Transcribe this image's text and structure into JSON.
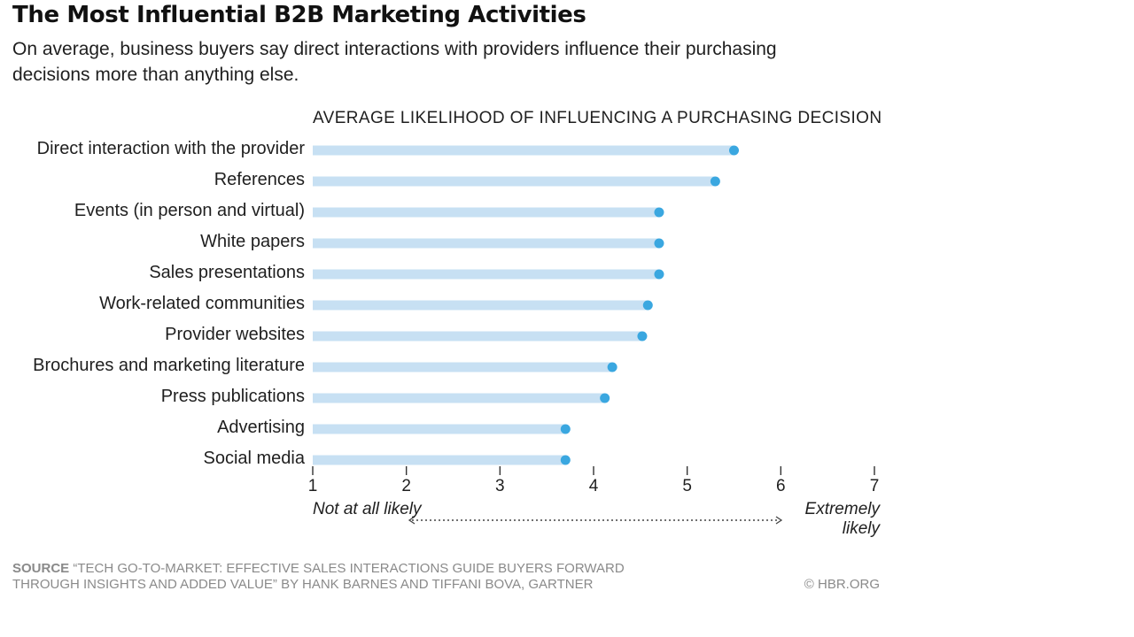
{
  "header": {
    "title": "The Most Influential B2B Marketing Activities",
    "subtitle": "On average, business buyers say direct interactions with providers influence their purchasing decisions more than anything else."
  },
  "chart_data": {
    "type": "dot",
    "title": "AVERAGE LIKELIHOOD OF INFLUENCING A PURCHASING DECISION",
    "categories": [
      "Direct interaction with the provider",
      "References",
      "Events (in person and virtual)",
      "White papers",
      "Sales presentations",
      "Work-related communities",
      "Provider websites",
      "Brochures and marketing literature",
      "Press publications",
      "Advertising",
      "Social media"
    ],
    "values": [
      5.5,
      5.3,
      4.7,
      4.7,
      4.7,
      4.58,
      4.52,
      4.2,
      4.12,
      3.7,
      3.7
    ],
    "xlim": [
      1,
      7
    ],
    "xticks": [
      "1",
      "2",
      "3",
      "4",
      "5",
      "6",
      "7"
    ],
    "scale_low_label": "Not at all likely",
    "scale_high_label": "Extremely likely",
    "xlabel": "",
    "ylabel": "",
    "bar_color": "#c7e0f3",
    "dot_color": "#3aa7e0"
  },
  "footer": {
    "source_key": "SOURCE",
    "source_text": "“TECH GO-TO-MARKET: EFFECTIVE SALES INTERACTIONS GUIDE BUYERS FORWARD THROUGH INSIGHTS AND ADDED VALUE” BY HANK BARNES AND TIFFANI BOVA, GARTNER",
    "credit": "© HBR.ORG"
  }
}
